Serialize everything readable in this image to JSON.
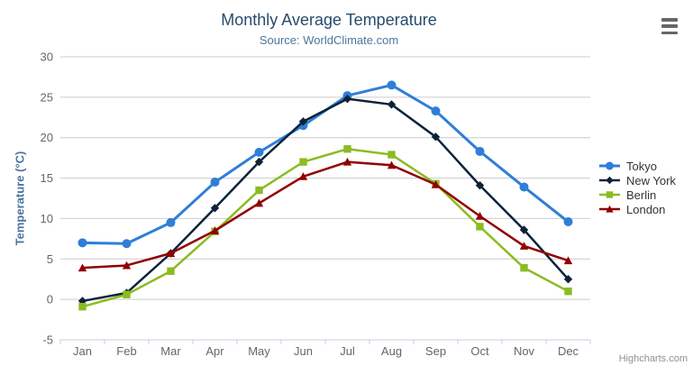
{
  "chart_data": {
    "type": "line",
    "title": "Monthly Average Temperature",
    "subtitle": "Source: WorldClimate.com",
    "xlabel": "",
    "ylabel": "Temperature (°C)",
    "categories": [
      "Jan",
      "Feb",
      "Mar",
      "Apr",
      "May",
      "Jun",
      "Jul",
      "Aug",
      "Sep",
      "Oct",
      "Nov",
      "Dec"
    ],
    "ylim": [
      -5,
      30
    ],
    "yticks": [
      30,
      25,
      20,
      15,
      10,
      5,
      0,
      -5
    ],
    "grid": true,
    "legend_position": "right",
    "series": [
      {
        "name": "Tokyo",
        "color": "#2f7ed8",
        "marker": "circle",
        "values": [
          7.0,
          6.9,
          9.5,
          14.5,
          18.2,
          21.5,
          25.2,
          26.5,
          23.3,
          18.3,
          13.9,
          9.6
        ]
      },
      {
        "name": "New York",
        "color": "#0d233a",
        "marker": "diamond",
        "values": [
          -0.2,
          0.8,
          5.7,
          11.3,
          17.0,
          22.0,
          24.8,
          24.1,
          20.1,
          14.1,
          8.6,
          2.5
        ]
      },
      {
        "name": "Berlin",
        "color": "#8bbc21",
        "marker": "square",
        "values": [
          -0.9,
          0.6,
          3.5,
          8.4,
          13.5,
          17.0,
          18.6,
          17.9,
          14.3,
          9.0,
          3.9,
          1.0
        ]
      },
      {
        "name": "London",
        "color": "#910000",
        "marker": "triangle",
        "values": [
          3.9,
          4.2,
          5.7,
          8.5,
          11.9,
          15.2,
          17.0,
          16.6,
          14.2,
          10.3,
          6.6,
          4.8
        ]
      }
    ]
  },
  "ui": {
    "credits": "Highcharts.com",
    "menu_icon": "hamburger-icon"
  },
  "colors": {
    "title": "#274b6d",
    "subtitle": "#4d759e",
    "axis_title": "#4d759e",
    "tick_label": "#666666",
    "grid": "#cccccc",
    "axis_line": "#c0d0e0",
    "legend_label": "#333333",
    "credits": "#8f8f8f",
    "menu_icon": "#666666",
    "background": "#ffffff"
  }
}
